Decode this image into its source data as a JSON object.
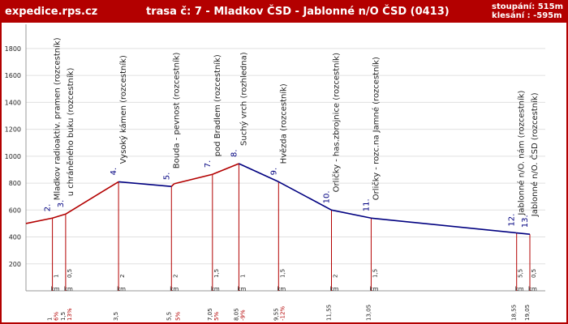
{
  "header": {
    "site": "expedice.rps.cz",
    "route": "trasa č: 7  -  Mladkov ČSD - Jablonné n/O ČSD (0413)",
    "ascent": "stoupání: 515m",
    "descent": "klesání : -595m"
  },
  "colors": {
    "frame": "#b30000",
    "ascent_line": "#b30000",
    "descent_line": "#000080",
    "grid": "#e0e0e0",
    "pole": "#b30000",
    "number": "#000080",
    "text": "#222222"
  },
  "chart_data": {
    "type": "line",
    "title": "trasa č: 7  -  Mladkov ČSD - Jablonné n/O ČSD (0413)",
    "ylim": [
      0,
      2000
    ],
    "yticks": [
      200,
      400,
      600,
      800,
      1000,
      1200,
      1400,
      1600,
      1800
    ],
    "xlim": [
      0,
      19.05
    ],
    "grid": true,
    "unit_label": "km",
    "points": [
      {
        "dist": 0,
        "elev": 500
      },
      {
        "dist": 1,
        "elev": 540,
        "num": "2.",
        "name": "Mladkov radioaktiv. pramen (rozcestník)",
        "seg": "1",
        "cum": "1",
        "grade": "6%"
      },
      {
        "dist": 1.5,
        "elev": 570,
        "num": "3.",
        "name": "u chráněného buku (rozcestník)",
        "seg": "0,5",
        "cum": "1,5",
        "grade": "13%"
      },
      {
        "dist": 3.5,
        "elev": 810,
        "num": "4.",
        "name": "Vysoký kámen (rozcestník)",
        "seg": "2",
        "cum": "3,5",
        "grade": ""
      },
      {
        "dist": 5.5,
        "elev": 775,
        "num": "5.",
        "name": "Bouda - pevnost (rozcestník)",
        "seg": "2",
        "cum": "5,5",
        "grade": ""
      },
      {
        "dist": 5.6,
        "elev": 795,
        "num": "",
        "name": "",
        "seg": "",
        "cum": "",
        "grade": "5%"
      },
      {
        "dist": 7.05,
        "elev": 865,
        "num": "7.",
        "name": "pod Bradlem (rozcestník)",
        "seg": "1,5",
        "cum": "7,05",
        "grade": "5%"
      },
      {
        "dist": 8.05,
        "elev": 945,
        "num": "8.",
        "name": "Suchý vrch (rozhledna)",
        "seg": "1",
        "cum": "8,05",
        "grade": "-9%"
      },
      {
        "dist": 9.55,
        "elev": 810,
        "num": "9.",
        "name": "Hvězda (rozcestník)",
        "seg": "1,5",
        "cum": "9,55",
        "grade": "-12%"
      },
      {
        "dist": 11.55,
        "elev": 600,
        "num": "10.",
        "name": "Orličky - has.zbrojnice (rozcestník)",
        "seg": "2",
        "cum": "11,55",
        "grade": ""
      },
      {
        "dist": 13.05,
        "elev": 540,
        "num": "11.",
        "name": "Orličky - rozc.na Jamné (rozcestník)",
        "seg": "1,5",
        "cum": "13,05",
        "grade": ""
      },
      {
        "dist": 18.55,
        "elev": 430,
        "num": "12.",
        "name": "Jablonné n/O. nám (rozcestník)",
        "seg": "5,5",
        "cum": "18,55",
        "grade": ""
      },
      {
        "dist": 19.05,
        "elev": 420,
        "num": "13.",
        "name": "Jablonné n/O. ČSD (rozcestník)",
        "seg": "0,5",
        "cum": "19,05",
        "grade": ""
      }
    ]
  }
}
